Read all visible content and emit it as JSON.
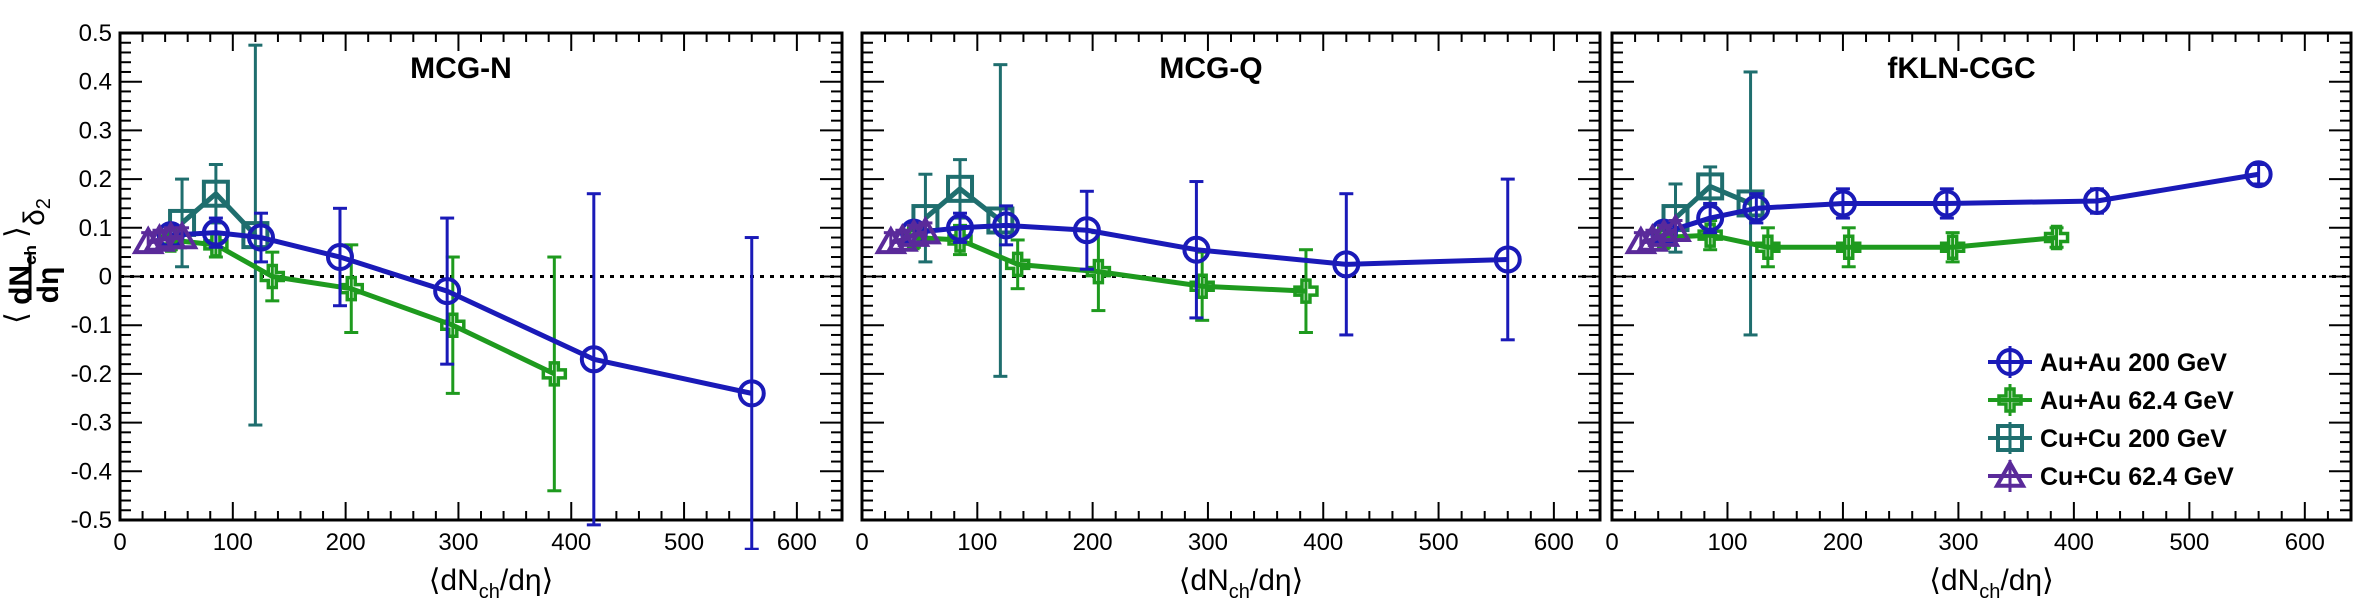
{
  "chart_data": [
    {
      "type": "line",
      "title": "MCG-N",
      "xlabel": "⟨dN_ch/dη⟩",
      "ylabel": "⟨dN_ch/dη⟩ δ2",
      "xlim": [
        0,
        640
      ],
      "ylim": [
        -0.5,
        0.5
      ],
      "grid": false,
      "reference_line_y": 0,
      "series": [
        {
          "name": "Au+Au 200 GeV",
          "color": "#1a1ab8",
          "marker": "circle",
          "x": [
            45,
            85,
            125,
            195,
            290,
            420,
            560
          ],
          "y": [
            0.085,
            0.09,
            0.08,
            0.04,
            -0.03,
            -0.17,
            -0.24
          ],
          "err": [
            0.02,
            0.03,
            0.05,
            0.1,
            0.15,
            0.34,
            0.32
          ]
        },
        {
          "name": "Au+Au 62.4 GeV",
          "color": "#1e9a1e",
          "marker": "cross",
          "x": [
            45,
            85,
            135,
            205,
            295,
            385
          ],
          "y": [
            0.075,
            0.065,
            0.0,
            -0.025,
            -0.1,
            -0.2
          ],
          "err": [
            0.02,
            0.025,
            0.05,
            0.09,
            0.14,
            0.24
          ]
        },
        {
          "name": "Cu+Cu 200 GeV",
          "color": "#1f6e6e",
          "marker": "square",
          "x": [
            55,
            85,
            120
          ],
          "y": [
            0.11,
            0.17,
            0.085
          ],
          "err": [
            0.09,
            0.06,
            0.39
          ]
        },
        {
          "name": "Cu+Cu 62.4 GeV",
          "color": "#5a2a9a",
          "marker": "triangle",
          "x": [
            25,
            35,
            45,
            55
          ],
          "y": [
            0.07,
            0.075,
            0.08,
            0.08
          ],
          "err": [
            0.02,
            0.02,
            0.02,
            0.02
          ]
        }
      ]
    },
    {
      "type": "line",
      "title": "MCG-Q",
      "xlabel": "⟨dN_ch/dη⟩",
      "ylabel": "",
      "xlim": [
        0,
        640
      ],
      "ylim": [
        -0.5,
        0.5
      ],
      "grid": false,
      "reference_line_y": 0,
      "series": [
        {
          "name": "Au+Au 200 GeV",
          "color": "#1a1ab8",
          "marker": "circle",
          "x": [
            45,
            85,
            125,
            195,
            290,
            420,
            560
          ],
          "y": [
            0.09,
            0.1,
            0.105,
            0.095,
            0.055,
            0.025,
            0.035
          ],
          "err": [
            0.02,
            0.03,
            0.04,
            0.08,
            0.14,
            0.145,
            0.165
          ]
        },
        {
          "name": "Au+Au 62.4 GeV",
          "color": "#1e9a1e",
          "marker": "cross",
          "x": [
            45,
            85,
            135,
            205,
            295,
            385
          ],
          "y": [
            0.08,
            0.075,
            0.025,
            0.01,
            -0.02,
            -0.03
          ],
          "err": [
            0.02,
            0.03,
            0.05,
            0.08,
            0.07,
            0.085
          ]
        },
        {
          "name": "Cu+Cu 200 GeV",
          "color": "#1f6e6e",
          "marker": "square",
          "x": [
            55,
            85,
            120
          ],
          "y": [
            0.12,
            0.18,
            0.115
          ],
          "err": [
            0.09,
            0.06,
            0.32
          ]
        },
        {
          "name": "Cu+Cu 62.4 GeV",
          "color": "#5a2a9a",
          "marker": "triangle",
          "x": [
            25,
            35,
            45,
            55
          ],
          "y": [
            0.07,
            0.075,
            0.085,
            0.09
          ],
          "err": [
            0.02,
            0.02,
            0.02,
            0.02
          ]
        }
      ]
    },
    {
      "type": "line",
      "title": "fKLN-CGC",
      "xlabel": "⟨dN_ch/dη⟩",
      "ylabel": "",
      "xlim": [
        0,
        640
      ],
      "ylim": [
        -0.5,
        0.5
      ],
      "grid": false,
      "reference_line_y": 0,
      "legend": "bottom-right",
      "series": [
        {
          "name": "Au+Au 200 GeV",
          "color": "#1a1ab8",
          "marker": "circle",
          "x": [
            45,
            85,
            125,
            200,
            290,
            420,
            560
          ],
          "y": [
            0.09,
            0.12,
            0.14,
            0.15,
            0.15,
            0.155,
            0.21
          ],
          "err": [
            0.02,
            0.03,
            0.03,
            0.03,
            0.03,
            0.025,
            0.02
          ]
        },
        {
          "name": "Au+Au 62.4 GeV",
          "color": "#1e9a1e",
          "marker": "cross",
          "x": [
            45,
            85,
            135,
            205,
            295,
            385
          ],
          "y": [
            0.08,
            0.085,
            0.06,
            0.06,
            0.06,
            0.08
          ],
          "err": [
            0.02,
            0.03,
            0.04,
            0.04,
            0.03,
            0.02
          ]
        },
        {
          "name": "Cu+Cu 200 GeV",
          "color": "#1f6e6e",
          "marker": "square",
          "x": [
            55,
            85,
            120
          ],
          "y": [
            0.12,
            0.185,
            0.15
          ],
          "err": [
            0.07,
            0.04,
            0.27
          ]
        },
        {
          "name": "Cu+Cu 62.4 GeV",
          "color": "#5a2a9a",
          "marker": "triangle",
          "x": [
            25,
            35,
            45,
            55
          ],
          "y": [
            0.07,
            0.075,
            0.085,
            0.095
          ],
          "err": [
            0.02,
            0.02,
            0.02,
            0.02
          ]
        }
      ]
    }
  ],
  "axis": {
    "x_ticks": [
      0,
      100,
      200,
      300,
      400,
      500,
      600
    ],
    "y_ticks": [
      "0.5",
      "0.4",
      "0.3",
      "0.2",
      "0.1",
      "0",
      "-0.1",
      "-0.2",
      "-0.3",
      "-0.4",
      "-0.5"
    ],
    "x_title_main": "⟨dN",
    "x_title_sub": "ch",
    "x_title_tail": "/dη⟩",
    "y_title_num": "dN",
    "y_title_num_sub": "ch",
    "y_title_den": "dη",
    "y_title_delta": "δ",
    "y_title_delta_sub": "2"
  },
  "legend": {
    "entries": [
      "Au+Au 200 GeV",
      "Au+Au 62.4 GeV",
      "Cu+Cu 200 GeV",
      "Cu+Cu 62.4 GeV"
    ]
  }
}
